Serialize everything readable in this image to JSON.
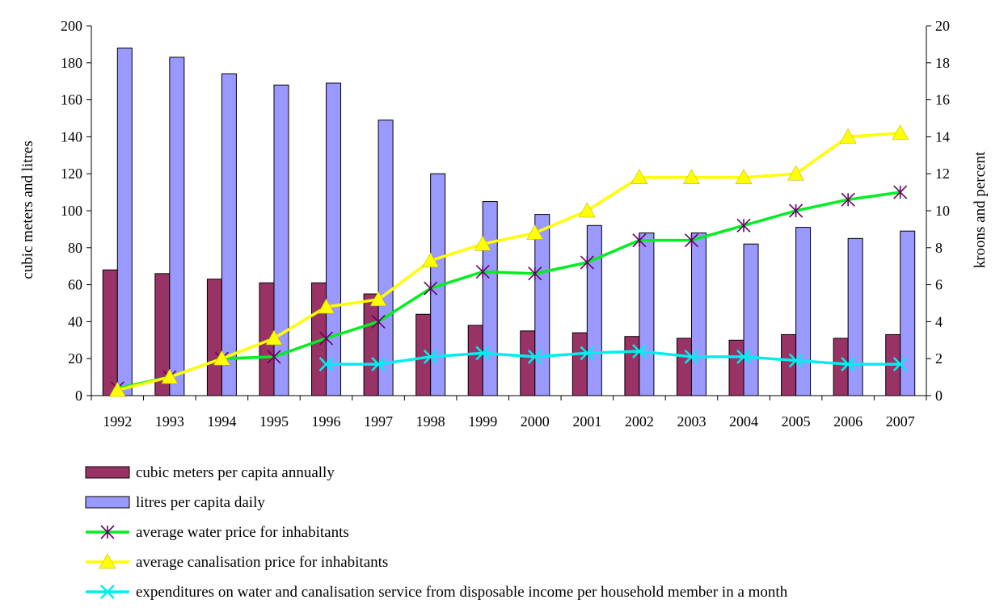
{
  "chart_data": {
    "type": "bar",
    "categories": [
      "1992",
      "1993",
      "1994",
      "1995",
      "1996",
      "1997",
      "1998",
      "1999",
      "2000",
      "2001",
      "2002",
      "2003",
      "2004",
      "2005",
      "2006",
      "2007"
    ],
    "y_left": {
      "label": "cubic meters and litres",
      "range": [
        0,
        200
      ],
      "ticks": [
        0,
        20,
        40,
        60,
        80,
        100,
        120,
        140,
        160,
        180,
        200
      ]
    },
    "y_right": {
      "label": "kroons and percent",
      "range": [
        0,
        20
      ],
      "ticks": [
        0,
        2,
        4,
        6,
        8,
        10,
        12,
        14,
        16,
        18,
        20
      ]
    },
    "grid": false,
    "legend_position": "bottom",
    "series": [
      {
        "name": "cubic meters per capita annually",
        "kind": "bar",
        "axis": "left",
        "color": "#993366",
        "values": [
          68,
          66,
          63,
          61,
          61,
          55,
          44,
          38,
          35,
          34,
          32,
          31,
          30,
          33,
          31,
          33
        ]
      },
      {
        "name": "litres per capita daily",
        "kind": "bar",
        "axis": "left",
        "color": "#9999ff",
        "values": [
          188,
          183,
          174,
          168,
          169,
          149,
          120,
          105,
          98,
          92,
          88,
          88,
          82,
          91,
          85,
          89
        ]
      },
      {
        "name": "average water price for inhabitants",
        "kind": "line",
        "axis": "right",
        "color": "#00ee22",
        "marker": "star",
        "marker_color": "#660066",
        "values": [
          0.4,
          1.0,
          2.0,
          2.1,
          3.1,
          4.0,
          5.8,
          6.7,
          6.6,
          7.2,
          8.4,
          8.4,
          9.2,
          10.0,
          10.6,
          11.0
        ]
      },
      {
        "name": "average canalisation price for inhabitants",
        "kind": "line",
        "axis": "right",
        "color": "#ffff00",
        "marker": "triangle",
        "marker_color": "#ffff00",
        "values": [
          0.3,
          1.0,
          2.0,
          3.1,
          4.8,
          5.2,
          7.3,
          8.2,
          8.8,
          10.0,
          11.8,
          11.8,
          11.8,
          12.0,
          14.0,
          14.2
        ]
      },
      {
        "name": "expenditures on water and canalisation service from disposable income per household member in a month",
        "kind": "line",
        "axis": "right",
        "color": "#00eeee",
        "marker": "x",
        "marker_color": "#00eeee",
        "values": [
          null,
          null,
          null,
          null,
          1.7,
          1.7,
          2.1,
          2.3,
          2.1,
          2.3,
          2.4,
          2.1,
          2.1,
          1.9,
          1.7,
          1.7
        ]
      }
    ]
  }
}
